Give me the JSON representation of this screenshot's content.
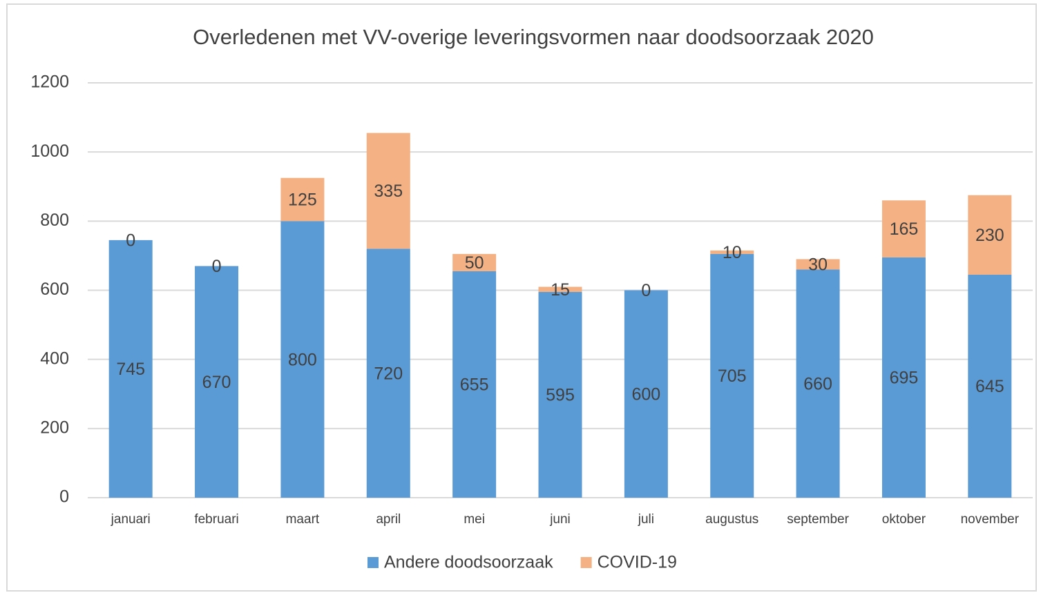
{
  "chart_data": {
    "type": "stacked_bar",
    "title": "Overledenen met VV-overige leveringsvormen naar doodsoorzaak 2020",
    "categories": [
      "januari",
      "februari",
      "maart",
      "april",
      "mei",
      "juni",
      "juli",
      "augustus",
      "september",
      "oktober",
      "november"
    ],
    "series": [
      {
        "name": "Andere doodsoorzaak",
        "color": "#5b9bd5",
        "values": [
          745,
          670,
          800,
          720,
          655,
          595,
          600,
          705,
          660,
          695,
          645
        ]
      },
      {
        "name": "COVID-19",
        "color": "#f4b183",
        "values": [
          0,
          0,
          125,
          335,
          50,
          15,
          0,
          10,
          30,
          165,
          230
        ]
      }
    ],
    "ylim": [
      0,
      1200
    ],
    "yticks": [
      0,
      200,
      400,
      600,
      800,
      1000,
      1200
    ],
    "grid": true,
    "legend": "bottom"
  }
}
